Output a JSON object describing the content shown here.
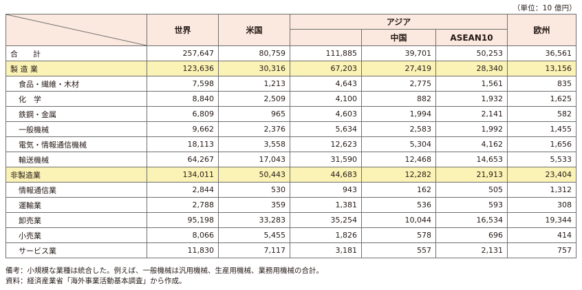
{
  "unit_note": "（単位：10 億円）",
  "header": {
    "world": "世界",
    "usa": "米国",
    "asia": "アジア",
    "china": "中国",
    "asean": "ASEAN10",
    "europe": "欧州"
  },
  "rows": [
    {
      "label": "合　　計",
      "values": [
        "257,647",
        "80,759",
        "111,885",
        "39,701",
        "50,253",
        "36,561"
      ]
    },
    {
      "label": "製 造 業",
      "values": [
        "123,636",
        "30,316",
        "67,203",
        "27,419",
        "28,340",
        "13,156"
      ]
    },
    {
      "label": "食品・繊維・木材",
      "values": [
        "7,598",
        "1,213",
        "4,643",
        "2,775",
        "1,561",
        "835"
      ]
    },
    {
      "label": "化　学",
      "values": [
        "8,840",
        "2,509",
        "4,100",
        "882",
        "1,932",
        "1,625"
      ]
    },
    {
      "label": "鉄鋼・金属",
      "values": [
        "6,809",
        "965",
        "4,603",
        "1,994",
        "2,141",
        "582"
      ]
    },
    {
      "label": "一般機械",
      "values": [
        "9,662",
        "2,376",
        "5,634",
        "2,583",
        "1,992",
        "1,455"
      ]
    },
    {
      "label": "電気・情報通信機械",
      "values": [
        "18,113",
        "3,558",
        "12,623",
        "5,304",
        "4,162",
        "1,656"
      ]
    },
    {
      "label": "輸送機械",
      "values": [
        "64,267",
        "17,043",
        "31,590",
        "12,468",
        "14,653",
        "5,533"
      ]
    },
    {
      "label": "非製造業",
      "values": [
        "134,011",
        "50,443",
        "44,683",
        "12,282",
        "21,913",
        "23,404"
      ]
    },
    {
      "label": "情報通信業",
      "values": [
        "2,844",
        "530",
        "943",
        "162",
        "505",
        "1,312"
      ]
    },
    {
      "label": "運輸業",
      "values": [
        "2,788",
        "359",
        "1,381",
        "536",
        "593",
        "308"
      ]
    },
    {
      "label": "卸売業",
      "values": [
        "95,198",
        "33,283",
        "35,254",
        "10,044",
        "16,534",
        "19,344"
      ]
    },
    {
      "label": "小売業",
      "values": [
        "8,066",
        "5,455",
        "1,826",
        "578",
        "696",
        "414"
      ]
    },
    {
      "label": "サービス業",
      "values": [
        "11,830",
        "7,117",
        "3,181",
        "557",
        "2,131",
        "757"
      ]
    }
  ],
  "notes": [
    "備考：小規模な業種は統合した。例えば、一般機械は汎用機械、生産用機械、業務用機械の合計。",
    "資料：経済産業省「海外事業活動基本調査」から作成。"
  ]
}
